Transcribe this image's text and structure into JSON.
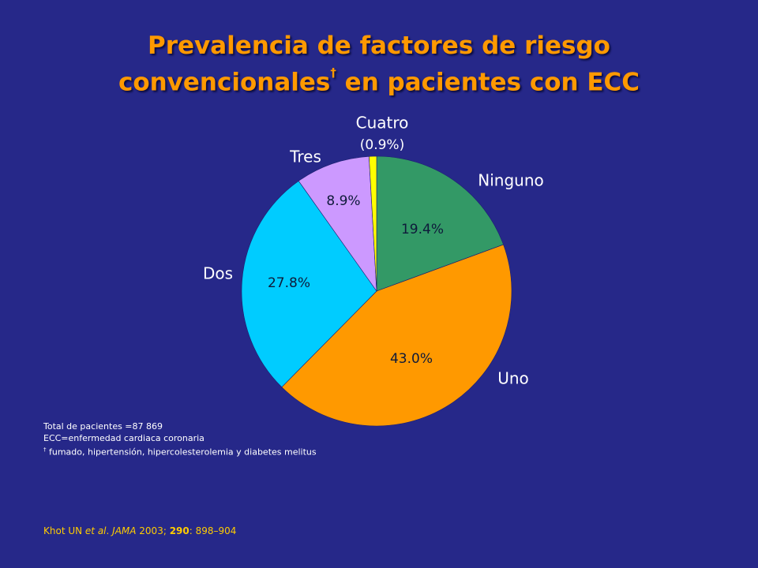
{
  "title": {
    "line1": "Prevalencia de factores de riesgo",
    "line2": "convencionales",
    "dagger": "†",
    "line2_rest": " en pacientes con ECC"
  },
  "chart_data": {
    "type": "pie",
    "slices": [
      {
        "label": "Ninguno",
        "value": 19.4,
        "value_label": "19.4%",
        "color": "#339966"
      },
      {
        "label": "Uno",
        "value": 43.0,
        "value_label": "43.0%",
        "color": "#ff9900"
      },
      {
        "label": "Dos",
        "value": 27.8,
        "value_label": "27.8%",
        "color": "#00ccff"
      },
      {
        "label": "Tres",
        "value": 8.9,
        "value_label": "8.9%",
        "color": "#cc99ff"
      },
      {
        "label": "Cuatro",
        "value": 0.9,
        "value_label": "(0.9%)",
        "color": "#ffff00"
      }
    ]
  },
  "notes": {
    "line1": "Total de pacientes =87 869",
    "line2": "ECC=enfermedad cardiaca coronaria",
    "dagger": "†",
    "line3": " fumado, hipertensión,  hipercolesterolemia  y diabetes melitus"
  },
  "citation": {
    "authors": "Khot UN ",
    "etal": "et al",
    "dot": ". ",
    "journal": "JAMA",
    "year": " 2003; ",
    "volume": "290",
    "pages": ": 898–904"
  }
}
